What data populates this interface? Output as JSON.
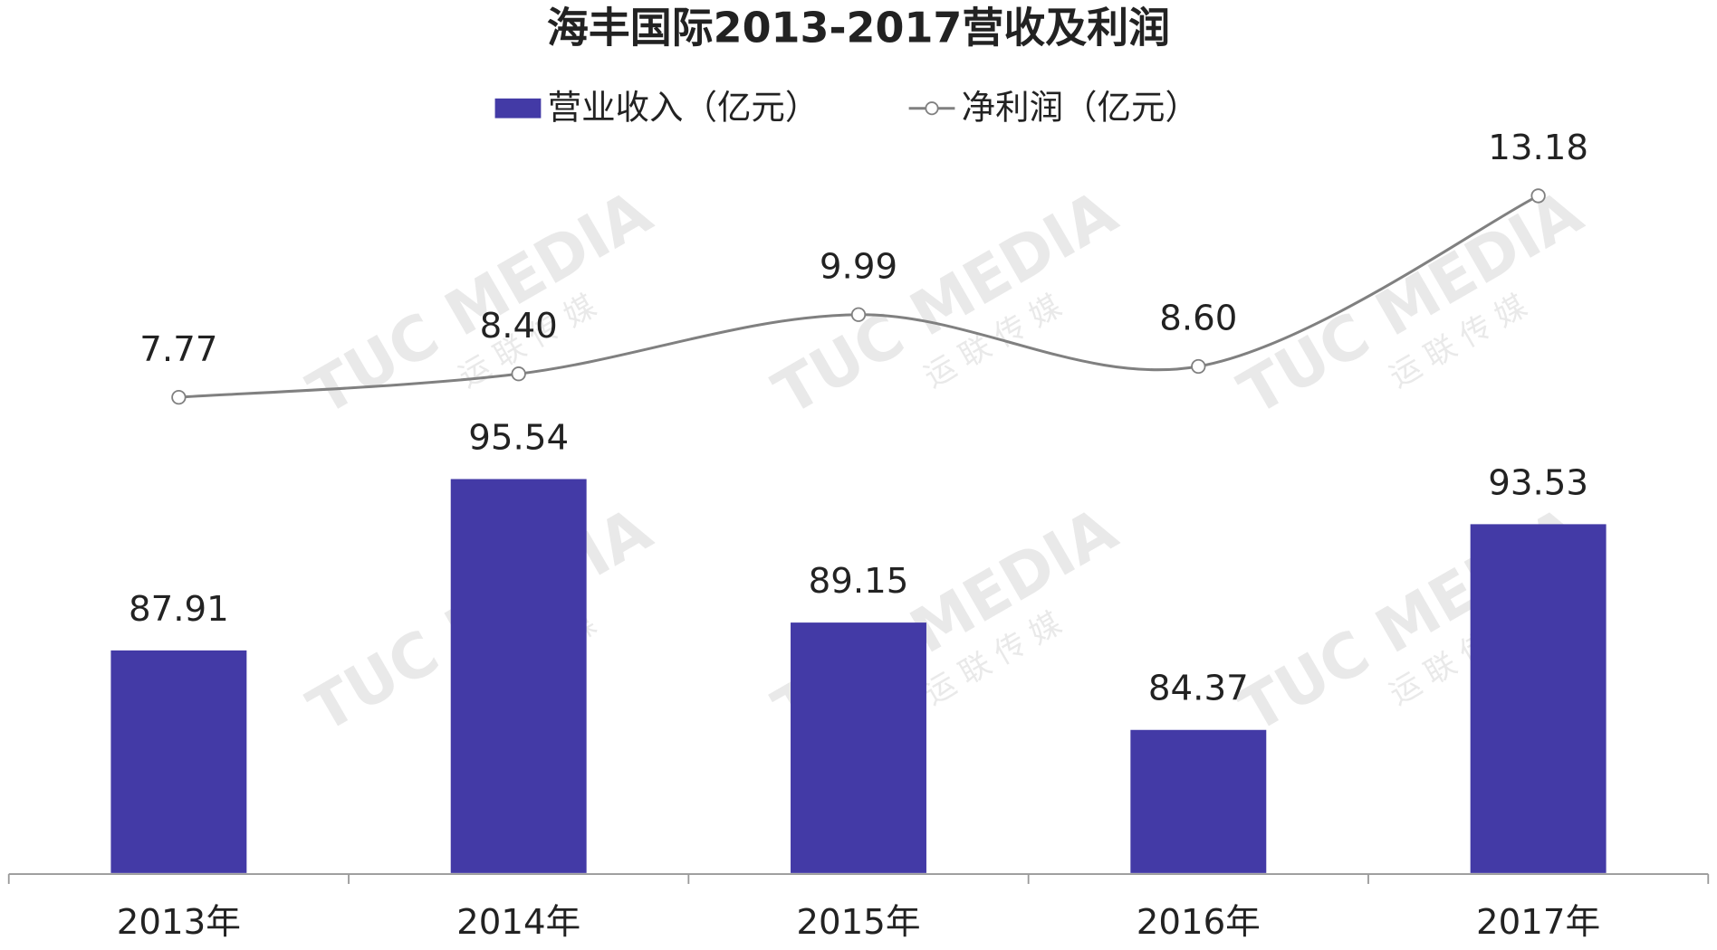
{
  "chart_data": {
    "type": "bar-line",
    "title": "海丰国际2013-2017营收及利润",
    "categories": [
      "2013年",
      "2014年",
      "2015年",
      "2016年",
      "2017年"
    ],
    "series": [
      {
        "name": "营业收入（亿元）",
        "type": "bar",
        "color": "#433aa6",
        "values": [
          87.91,
          95.54,
          89.15,
          84.37,
          93.53
        ]
      },
      {
        "name": "净利润（亿元）",
        "type": "line",
        "axis": "y2",
        "color": "#808080",
        "values": [
          7.77,
          8.4,
          9.99,
          8.6,
          13.18
        ],
        "value_labels": [
          "7.77",
          "8.40",
          "9.99",
          "8.60",
          "13.18"
        ]
      }
    ],
    "ylim": [
      78,
      112
    ],
    "y2lim": [
      -5,
      15.5
    ],
    "legend": "top",
    "watermark": [
      "TUC MEDIA",
      "运 联 传 媒"
    ]
  }
}
